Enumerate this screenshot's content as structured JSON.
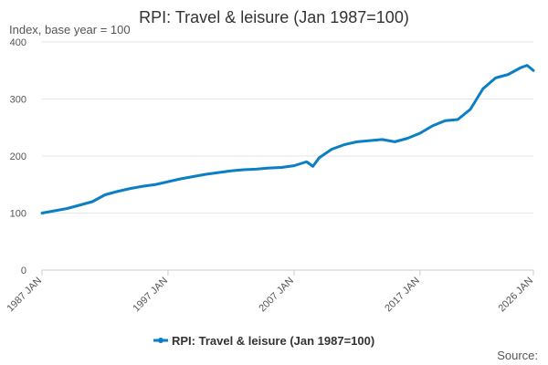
{
  "chart_data": {
    "type": "line",
    "title": "RPI: Travel & leisure (Jan 1987=100)",
    "ylabel": "Index, base year = 100",
    "xlabel": "",
    "source_label": "Source:",
    "ylim": [
      0,
      400
    ],
    "yticks": [
      0,
      100,
      200,
      300,
      400
    ],
    "xlim": [
      "1987-01",
      "2026-01"
    ],
    "xticks": [
      "1987 JAN",
      "1997 JAN",
      "2007 JAN",
      "2017 JAN",
      "2026 JAN"
    ],
    "grid": true,
    "legend_position": "bottom",
    "color": "#0a7fc4",
    "series": [
      {
        "name": "RPI: Travel & leisure (Jan 1987=100)",
        "x": [
          "1987-01",
          "1988-01",
          "1989-01",
          "1990-01",
          "1991-01",
          "1992-01",
          "1993-01",
          "1994-01",
          "1995-01",
          "1996-01",
          "1997-01",
          "1998-01",
          "1999-01",
          "2000-01",
          "2001-01",
          "2002-01",
          "2003-01",
          "2004-01",
          "2005-01",
          "2006-01",
          "2007-01",
          "2008-01",
          "2008-07",
          "2009-01",
          "2010-01",
          "2011-01",
          "2012-01",
          "2013-01",
          "2014-01",
          "2015-01",
          "2016-01",
          "2017-01",
          "2018-01",
          "2019-01",
          "2020-01",
          "2021-01",
          "2021-07",
          "2022-01",
          "2023-01",
          "2024-01",
          "2025-01",
          "2025-07",
          "2026-01"
        ],
        "values": [
          100,
          104,
          108,
          114,
          120,
          132,
          138,
          143,
          147,
          150,
          155,
          160,
          164,
          168,
          171,
          174,
          176,
          177,
          179,
          180,
          183,
          190,
          182,
          197,
          212,
          220,
          225,
          227,
          229,
          225,
          231,
          240,
          253,
          262,
          264,
          282,
          300,
          318,
          337,
          343,
          355,
          359,
          350
        ]
      }
    ]
  }
}
